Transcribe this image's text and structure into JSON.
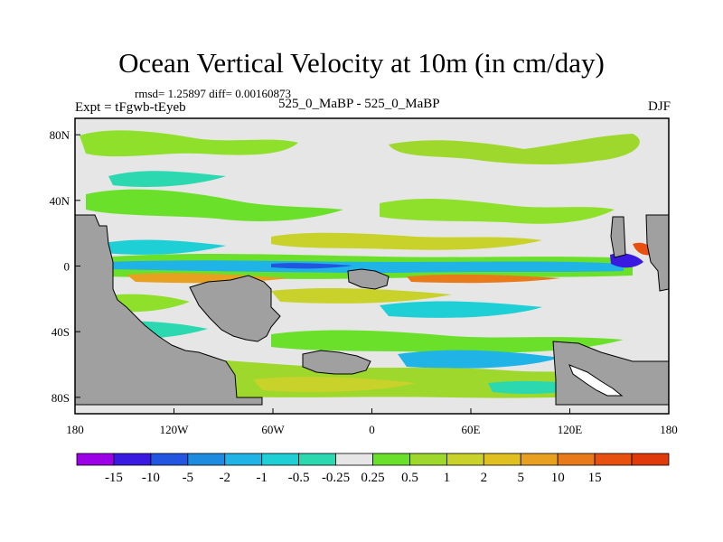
{
  "title": "Ocean Vertical Velocity at 10m (in cm/day)",
  "stats": "rmsd= 1.25897 diff= 0.00160873",
  "experiment": "Expt = tFgwb-tEyeb",
  "runs": "525_0_MaBP - 525_0_MaBP",
  "season": "DJF",
  "map": {
    "lon_range": [
      -180,
      180
    ],
    "lat_range": [
      -90,
      90
    ],
    "lat_ticks": [
      {
        "value": 80,
        "label": "80N"
      },
      {
        "value": 40,
        "label": "40N"
      },
      {
        "value": 0,
        "label": "0"
      },
      {
        "value": -40,
        "label": "40S"
      },
      {
        "value": -80,
        "label": "80S"
      }
    ],
    "lon_ticks": [
      {
        "value": -180,
        "label": "180"
      },
      {
        "value": -120,
        "label": "120W"
      },
      {
        "value": -60,
        "label": "60W"
      },
      {
        "value": 0,
        "label": "0"
      },
      {
        "value": 60,
        "label": "60E"
      },
      {
        "value": 120,
        "label": "120E"
      },
      {
        "value": 180,
        "label": "180"
      }
    ],
    "land_color": "#a0a0a0"
  },
  "colorbar": {
    "colors": [
      "#9b00e6",
      "#3a1ae0",
      "#2255e0",
      "#1d8be0",
      "#1fb3e6",
      "#1ecfd6",
      "#2cd8b0",
      "#e6e6e6",
      "#6be02a",
      "#9fd82c",
      "#c8d22a",
      "#e0c020",
      "#e8a020",
      "#e87a1a",
      "#e85010",
      "#e03a0a"
    ],
    "labels": [
      "-15",
      "-10",
      "-5",
      "-2",
      "-1",
      "-0.5",
      "-0.25",
      "0.25",
      "0.5",
      "1",
      "2",
      "5",
      "10",
      "15"
    ]
  },
  "chart_data": {
    "type": "heatmap",
    "title": "Ocean Vertical Velocity at 10m (in cm/day)",
    "variable": "ocean vertical velocity difference at 10 m",
    "units": "cm/day",
    "season": "DJF",
    "xlabel": "",
    "ylabel": "",
    "xlim": [
      -180,
      180
    ],
    "ylim": [
      -90,
      90
    ],
    "levels": [
      -15,
      -10,
      -5,
      -2,
      -1,
      -0.5,
      -0.25,
      0.25,
      0.5,
      1,
      2,
      5,
      10,
      15
    ],
    "rmsd": 1.25897,
    "diff": 0.00160873
  }
}
